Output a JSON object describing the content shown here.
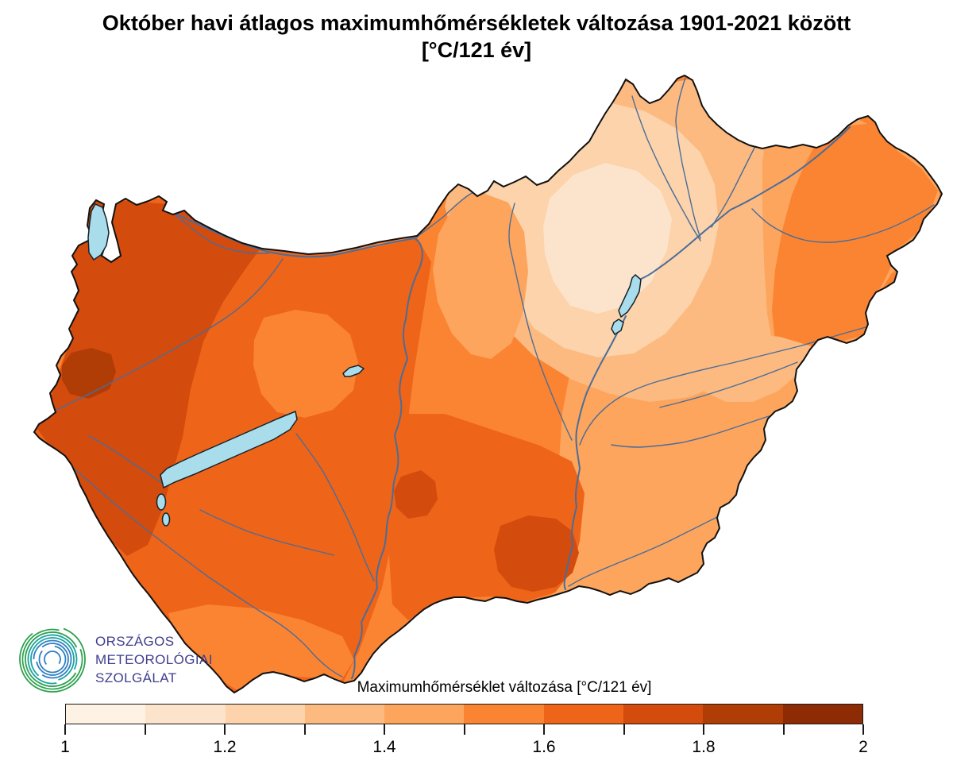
{
  "title": {
    "line1": "Október havi átlagos maximumhőmérsékletek változása 1901-2021 között",
    "line2": "[°C/121 év]"
  },
  "legend": {
    "label": "Maximumhőmérséklet változása [°C/121 év]"
  },
  "logo": {
    "line1": "ORSZÁGOS",
    "line2": "METEOROLÓGIAI",
    "line3": "SZOLGÁLAT",
    "colors": {
      "green": "#2da14f",
      "teal": "#1ba3a3",
      "blue": "#2f7fc1",
      "text": "#3f3e8e"
    }
  },
  "map_colors": {
    "outside": "#ffffff",
    "border": "#111111",
    "river": "#4a6d99",
    "lake_fill": "#a9ddeb",
    "lake_outline": "#16222c"
  },
  "chart_data": {
    "type": "heatmap",
    "title": "Október havi átlagos maximumhőmérsékletek változása 1901-2021 között [°C/121 év]",
    "legend_label": "Maximumhőmérséklet változása [°C/121 év]",
    "unit": "°C/121 év",
    "scale_min": 1,
    "scale_max": 2,
    "tick_labels": [
      "1",
      "1.2",
      "1.4",
      "1.6",
      "1.8",
      "2"
    ],
    "bins": [
      {
        "from": 1.0,
        "to": 1.1,
        "color": "#fdf2e3"
      },
      {
        "from": 1.1,
        "to": 1.2,
        "color": "#fce3cb"
      },
      {
        "from": 1.2,
        "to": 1.3,
        "color": "#fcd3aa"
      },
      {
        "from": 1.3,
        "to": 1.4,
        "color": "#fcba80"
      },
      {
        "from": 1.4,
        "to": 1.5,
        "color": "#fda55d"
      },
      {
        "from": 1.5,
        "to": 1.6,
        "color": "#fb8432"
      },
      {
        "from": 1.6,
        "to": 1.7,
        "color": "#ee6418"
      },
      {
        "from": 1.7,
        "to": 1.8,
        "color": "#d44b0e"
      },
      {
        "from": 1.8,
        "to": 1.9,
        "color": "#b03c06"
      },
      {
        "from": 1.9,
        "to": 2.0,
        "color": "#8d2b05"
      }
    ],
    "regions": [
      {
        "area": "far west border zone (northwest)",
        "value_range": "1.8–1.9"
      },
      {
        "area": "western Transdanubia",
        "value_range": "1.7–1.8"
      },
      {
        "area": "central and southern Transdanubia, Danube valley",
        "value_range": "1.6–1.7"
      },
      {
        "area": "south-central plain between Danube and Tisza",
        "value_range": "1.6–1.8"
      },
      {
        "area": "central plain",
        "value_range": "1.5–1.6"
      },
      {
        "area": "plains east of the Tisza",
        "value_range": "1.4–1.5"
      },
      {
        "area": "northeast / upper Tisza region (lightest)",
        "value_range": "1.1–1.3"
      },
      {
        "area": "far northeast corner",
        "value_range": "1.4–1.6"
      }
    ],
    "map_features": {
      "country": "Hungary",
      "lakes_depicted_unlabeled": [
        "Lake Fertő",
        "Lake Balaton",
        "Lake Velence",
        "Lake Tisza"
      ],
      "rivers_depicted_unlabeled": [
        "Danube",
        "Tisza",
        "Rába",
        "Dráva",
        "Sió",
        "Zagyva",
        "Bodrog",
        "Sajó",
        "Hernád",
        "Szamos",
        "Körös",
        "Maros"
      ]
    }
  }
}
